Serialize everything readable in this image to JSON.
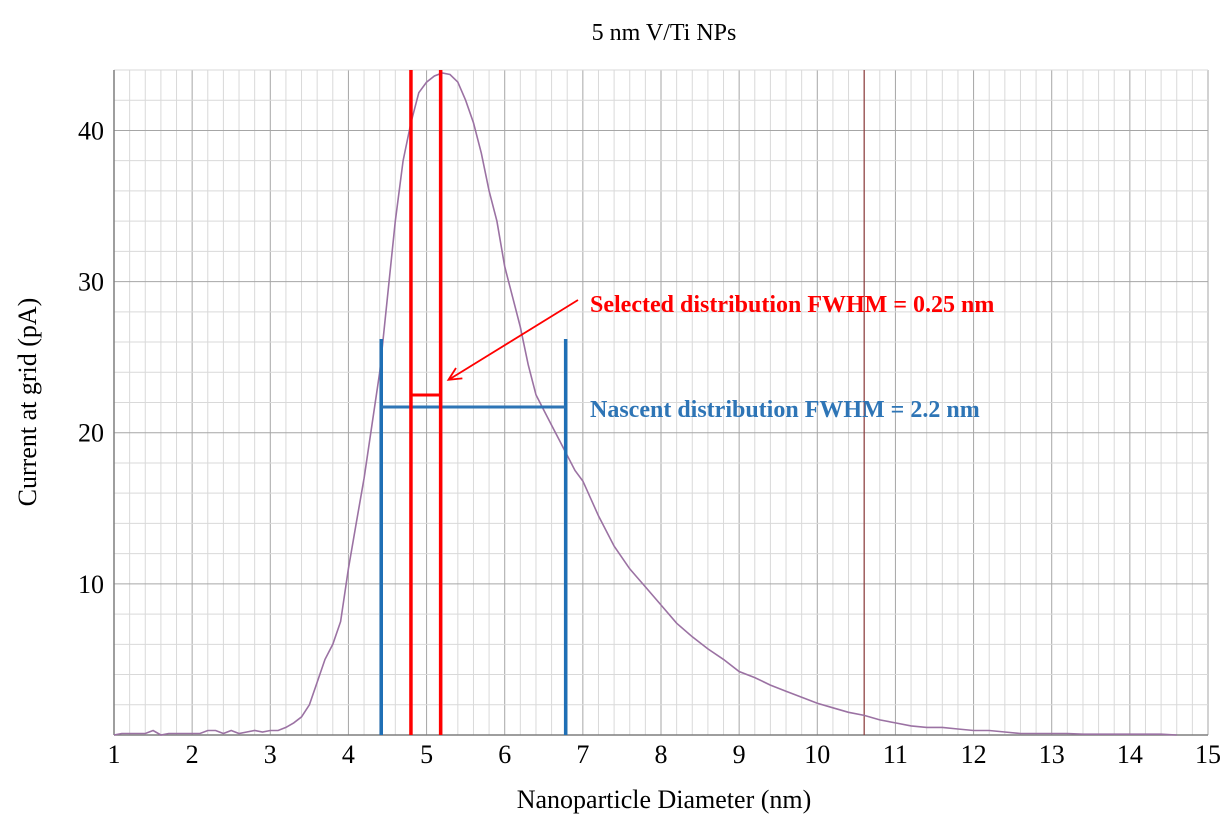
{
  "chart_data": {
    "type": "line",
    "title": "5 nm V/Ti NPs",
    "xlabel": "Nanoparticle Diameter (nm)",
    "ylabel": "Current at grid (pA)",
    "xlim": [
      1,
      15
    ],
    "ylim": [
      0,
      44
    ],
    "x_ticks": [
      1,
      2,
      3,
      4,
      5,
      6,
      7,
      8,
      9,
      10,
      11,
      12,
      13,
      14,
      15
    ],
    "y_ticks": [
      10,
      20,
      30,
      40
    ],
    "grid": "on (major and minor)",
    "colors": {
      "curve": "#9b72a3",
      "selected": "#ff0000",
      "nascent": "#1f6fb5",
      "marker": "#8b3a3a"
    },
    "series": [
      {
        "x": [
          1.0,
          1.1,
          1.2,
          1.3,
          1.4,
          1.5,
          1.6,
          1.7,
          1.8,
          1.9,
          2.0,
          2.1,
          2.2,
          2.3,
          2.4,
          2.5,
          2.6,
          2.7,
          2.8,
          2.9,
          3.0,
          3.1,
          3.2,
          3.3,
          3.4,
          3.5,
          3.6,
          3.7,
          3.8,
          3.9,
          4.0,
          4.1,
          4.2,
          4.3,
          4.4,
          4.5,
          4.6,
          4.7,
          4.8,
          4.9,
          5.0,
          5.1,
          5.2,
          5.3,
          5.4,
          5.5,
          5.6,
          5.7,
          5.8,
          5.9,
          6.0,
          6.1,
          6.2,
          6.3,
          6.4,
          6.5,
          6.6,
          6.7,
          6.8,
          6.9,
          7.0,
          7.2,
          7.4,
          7.6,
          7.8,
          8.0,
          8.2,
          8.4,
          8.6,
          8.8,
          9.0,
          9.2,
          9.4,
          9.6,
          9.8,
          10.0,
          10.2,
          10.4,
          10.6,
          10.8,
          11.0,
          11.2,
          11.4,
          11.6,
          11.8,
          12.0,
          12.2,
          12.4,
          12.6,
          12.8,
          13.0,
          13.2,
          13.4,
          13.6,
          13.8,
          14.0,
          14.2,
          14.4,
          14.6
        ],
        "y": [
          0,
          0.1,
          0.1,
          0.1,
          0.1,
          0.3,
          0,
          0.1,
          0.1,
          0.1,
          0.1,
          0.1,
          0.3,
          0.3,
          0.1,
          0.3,
          0.1,
          0.2,
          0.3,
          0.2,
          0.3,
          0.3,
          0.5,
          0.8,
          1.2,
          2.0,
          3.5,
          5.0,
          6.0,
          7.5,
          11.0,
          14.0,
          17.0,
          20.5,
          24.0,
          29.0,
          34.0,
          38.0,
          40.5,
          42.5,
          43.2,
          43.6,
          43.8,
          43.7,
          43.2,
          42.0,
          40.5,
          38.5,
          36.0,
          34.0,
          31.0,
          29.0,
          27.0,
          24.5,
          22.5,
          21.5,
          20.5,
          19.5,
          18.5,
          17.5,
          16.8,
          14.5,
          12.5,
          11.0,
          9.8,
          8.6,
          7.4,
          6.5,
          5.7,
          5.0,
          4.2,
          3.8,
          3.3,
          2.9,
          2.5,
          2.1,
          1.8,
          1.5,
          1.3,
          1.0,
          0.8,
          0.6,
          0.5,
          0.5,
          0.4,
          0.3,
          0.3,
          0.2,
          0.1,
          0.1,
          0.1,
          0.1,
          0.05,
          0.05,
          0.05,
          0.05,
          0.05,
          0.05,
          0
        ]
      }
    ],
    "vertical_marker_x": 10.6,
    "annotations": {
      "selected": {
        "text": "Selected distribution  FWHM = 0.25 nm",
        "x_left": 4.8,
        "x_right": 5.18,
        "y_level": 22.5
      },
      "nascent": {
        "text": "Nascent distribution  FWHM = 2.2 nm",
        "x_left": 4.42,
        "x_right": 6.78,
        "y_level": 21.7,
        "line_top": 26.2
      }
    }
  }
}
